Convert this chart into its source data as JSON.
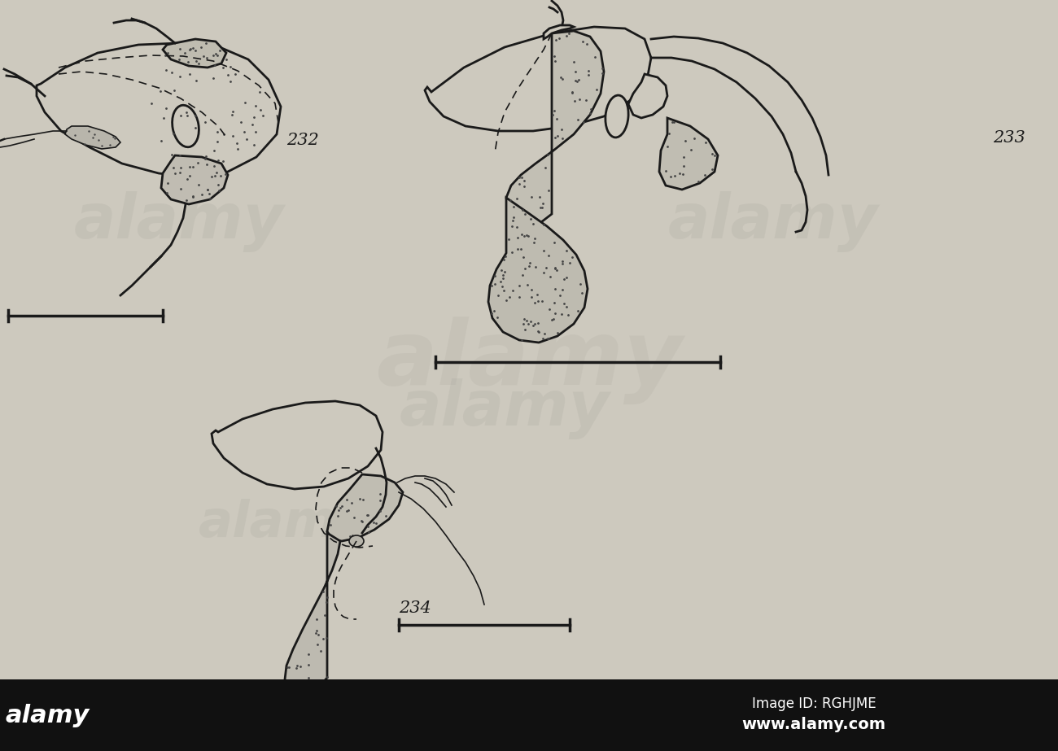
{
  "bg_color": "#cdc9be",
  "line_color": "#1a1a1a",
  "fill_light": "#cdc9be",
  "fill_stipple": "#c5c1b6",
  "dot_color": "#444444",
  "label_232": "232",
  "label_233": "233",
  "label_234": "234",
  "label_fontsize": 15,
  "footer_bg": "#111111",
  "footer_text1": "Image ID: RGHJME",
  "footer_text2": "www.alamy.com",
  "scale_bar_color": "#1a1a1a",
  "fig_width": 13.0,
  "fig_height": 9.23,
  "dpi": 100
}
